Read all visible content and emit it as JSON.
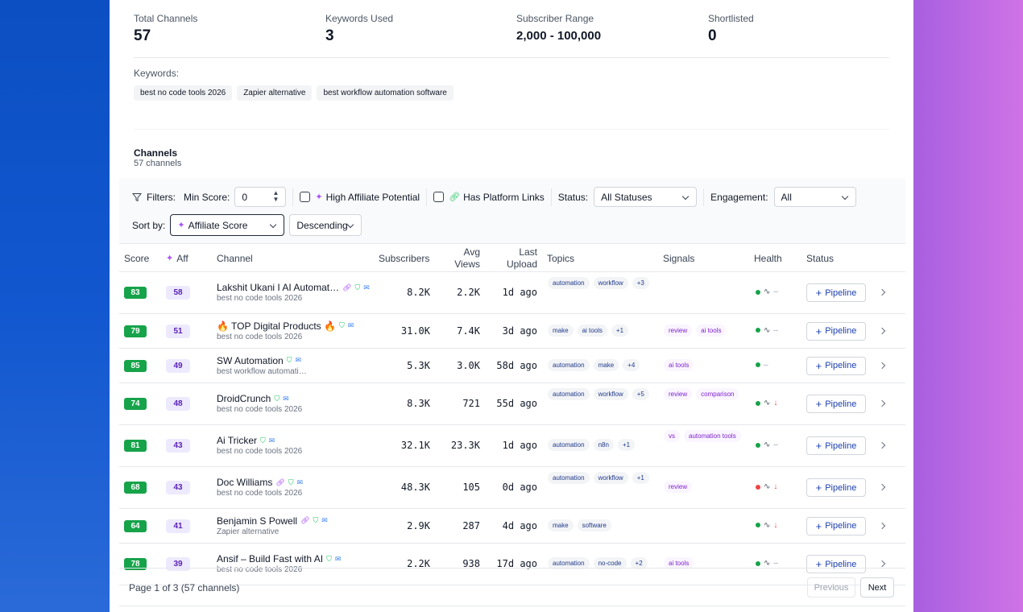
{
  "stats": [
    {
      "label": "Total Channels",
      "value": "57"
    },
    {
      "label": "Keywords Used",
      "value": "3"
    },
    {
      "label": "Subscriber Range",
      "value": "2,000 - 100,000"
    },
    {
      "label": "Shortlisted",
      "value": "0"
    }
  ],
  "keywords": {
    "label": "Keywords:",
    "items": [
      "best no code tools 2026",
      "Zapier alternative",
      "best workflow automation software"
    ]
  },
  "channels_section": {
    "title": "Channels",
    "subtitle": "57 channels"
  },
  "filters": {
    "label": "Filters:",
    "min_score_label": "Min Score:",
    "min_score_value": "0",
    "high_affiliate_label": "High Affiliate Potential",
    "platform_links_label": "Has Platform Links",
    "status_label": "Status:",
    "status_value": "All Statuses",
    "engagement_label": "Engagement:",
    "engagement_value": "All",
    "sort_label": "Sort by:",
    "sort_value": "Affiliate Score",
    "order_value": "Descending"
  },
  "table": {
    "headers": {
      "score": "Score",
      "aff": "Aff",
      "channel": "Channel",
      "subscribers": "Subscribers",
      "avg_views_1": "Avg",
      "avg_views_2": "Views",
      "last_upload_1": "Last",
      "last_upload_2": "Upload",
      "topics": "Topics",
      "signals": "Signals",
      "health": "Health",
      "status": "Status"
    },
    "pipeline_label": "Pipeline",
    "rows": [
      {
        "score": "83",
        "aff": "58",
        "name": "Lakshit Ukani I AI Automat…",
        "keyword": "best no code tools 2026",
        "subs": "8.2K",
        "views": "2.2K",
        "upload": "1d ago",
        "topics": [
          "automation",
          "workflow",
          "+3"
        ],
        "signals": [],
        "health_color": "#16a34a",
        "trend": "–"
      },
      {
        "score": "79",
        "aff": "51",
        "name": "🔥 TOP Digital Products 🔥",
        "keyword": "best no code tools 2026",
        "subs": "31.0K",
        "views": "7.4K",
        "upload": "3d ago",
        "topics": [
          "make",
          "ai tools",
          "+1"
        ],
        "signals": [
          "review",
          "ai tools"
        ],
        "health_color": "#16a34a",
        "trend": "–"
      },
      {
        "score": "85",
        "aff": "49",
        "name": "SW Automation",
        "keyword": "best workflow automati…",
        "subs": "5.3K",
        "views": "3.0K",
        "upload": "58d ago",
        "topics": [
          "automation",
          "make",
          "+4"
        ],
        "signals": [
          "ai tools"
        ],
        "health_color": "#16a34a",
        "trend": "–"
      },
      {
        "score": "74",
        "aff": "48",
        "name": "DroidCrunch",
        "keyword": "best no code tools 2026",
        "subs": "8.3K",
        "views": "721",
        "upload": "55d ago",
        "topics": [
          "automation",
          "workflow",
          "+5"
        ],
        "signals": [
          "review",
          "comparison"
        ],
        "health_color": "#16a34a",
        "trend": "↓"
      },
      {
        "score": "81",
        "aff": "43",
        "name": "Ai Tricker",
        "keyword": "best no code tools 2026",
        "subs": "32.1K",
        "views": "23.3K",
        "upload": "1d ago",
        "topics": [
          "automation",
          "n8n",
          "+1"
        ],
        "signals": [
          "vs",
          "automation tools"
        ],
        "health_color": "#16a34a",
        "trend": "–"
      },
      {
        "score": "68",
        "aff": "43",
        "name": "Doc Williams",
        "keyword": "best no code tools 2026",
        "subs": "48.3K",
        "views": "105",
        "upload": "0d ago",
        "topics": [
          "automation",
          "workflow",
          "+1"
        ],
        "signals": [
          "review"
        ],
        "health_color": "#ef4444",
        "trend": "↓"
      },
      {
        "score": "64",
        "aff": "41",
        "name": "Benjamin S Powell",
        "keyword": "Zapier alternative",
        "subs": "2.9K",
        "views": "287",
        "upload": "4d ago",
        "topics": [
          "make",
          "software"
        ],
        "signals": [],
        "health_color": "#16a34a",
        "trend": "↓"
      },
      {
        "score": "78",
        "aff": "39",
        "name": "Ansif – Build Fast with AI",
        "keyword": "best no code tools 2026",
        "subs": "2.2K",
        "views": "938",
        "upload": "17d ago",
        "topics": [
          "automation",
          "no-code",
          "+2"
        ],
        "signals": [
          "ai tools"
        ],
        "health_color": "#16a34a",
        "trend": "–"
      }
    ]
  },
  "pagination": {
    "info": "Page 1 of 3 (57 channels)",
    "previous": "Previous",
    "next": "Next"
  }
}
